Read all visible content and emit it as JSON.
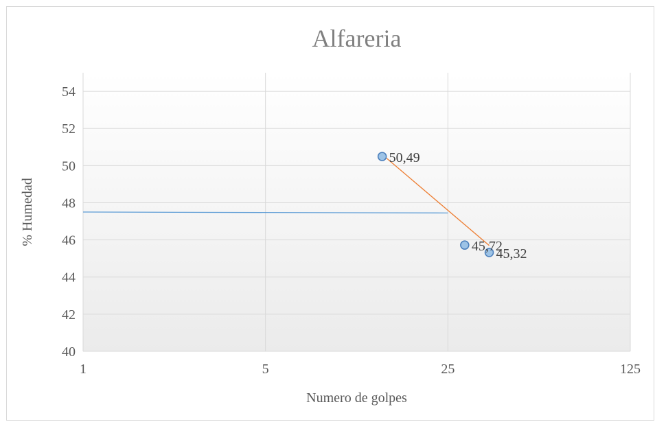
{
  "chart_data": {
    "type": "scatter",
    "title": "Alfareria",
    "xlabel": "Numero de golpes",
    "ylabel": "% Humedad",
    "x_scale": "log",
    "xlim": [
      1,
      125
    ],
    "ylim": [
      40,
      55
    ],
    "x_ticks": [
      1,
      5,
      25,
      125
    ],
    "x_tick_labels": [
      "1",
      "5",
      "25",
      "125"
    ],
    "y_ticks": [
      40,
      42,
      44,
      46,
      48,
      50,
      52,
      54
    ],
    "y_tick_labels": [
      "40",
      "42",
      "44",
      "46",
      "48",
      "50",
      "52",
      "54"
    ],
    "grid": true,
    "legend": "none",
    "series": [
      {
        "points": [
          {
            "x": 14,
            "y": 50.49,
            "label": "50,49"
          },
          {
            "x": 29,
            "y": 45.72,
            "label": "45,72"
          },
          {
            "x": 36,
            "y": 45.32,
            "label": "45,32"
          }
        ]
      }
    ],
    "trend_line": {
      "x": [
        14,
        36
      ],
      "y": [
        50.6,
        45.7
      ],
      "color": "#ed7d31"
    },
    "reference_line": {
      "x": [
        1,
        25
      ],
      "y": [
        47.5,
        47.45
      ],
      "color": "#5b9bd5"
    },
    "colors": {
      "marker_fill": "#9dc3e6",
      "marker_stroke": "#4a7ebb",
      "grid": "#d9d9d9"
    }
  }
}
